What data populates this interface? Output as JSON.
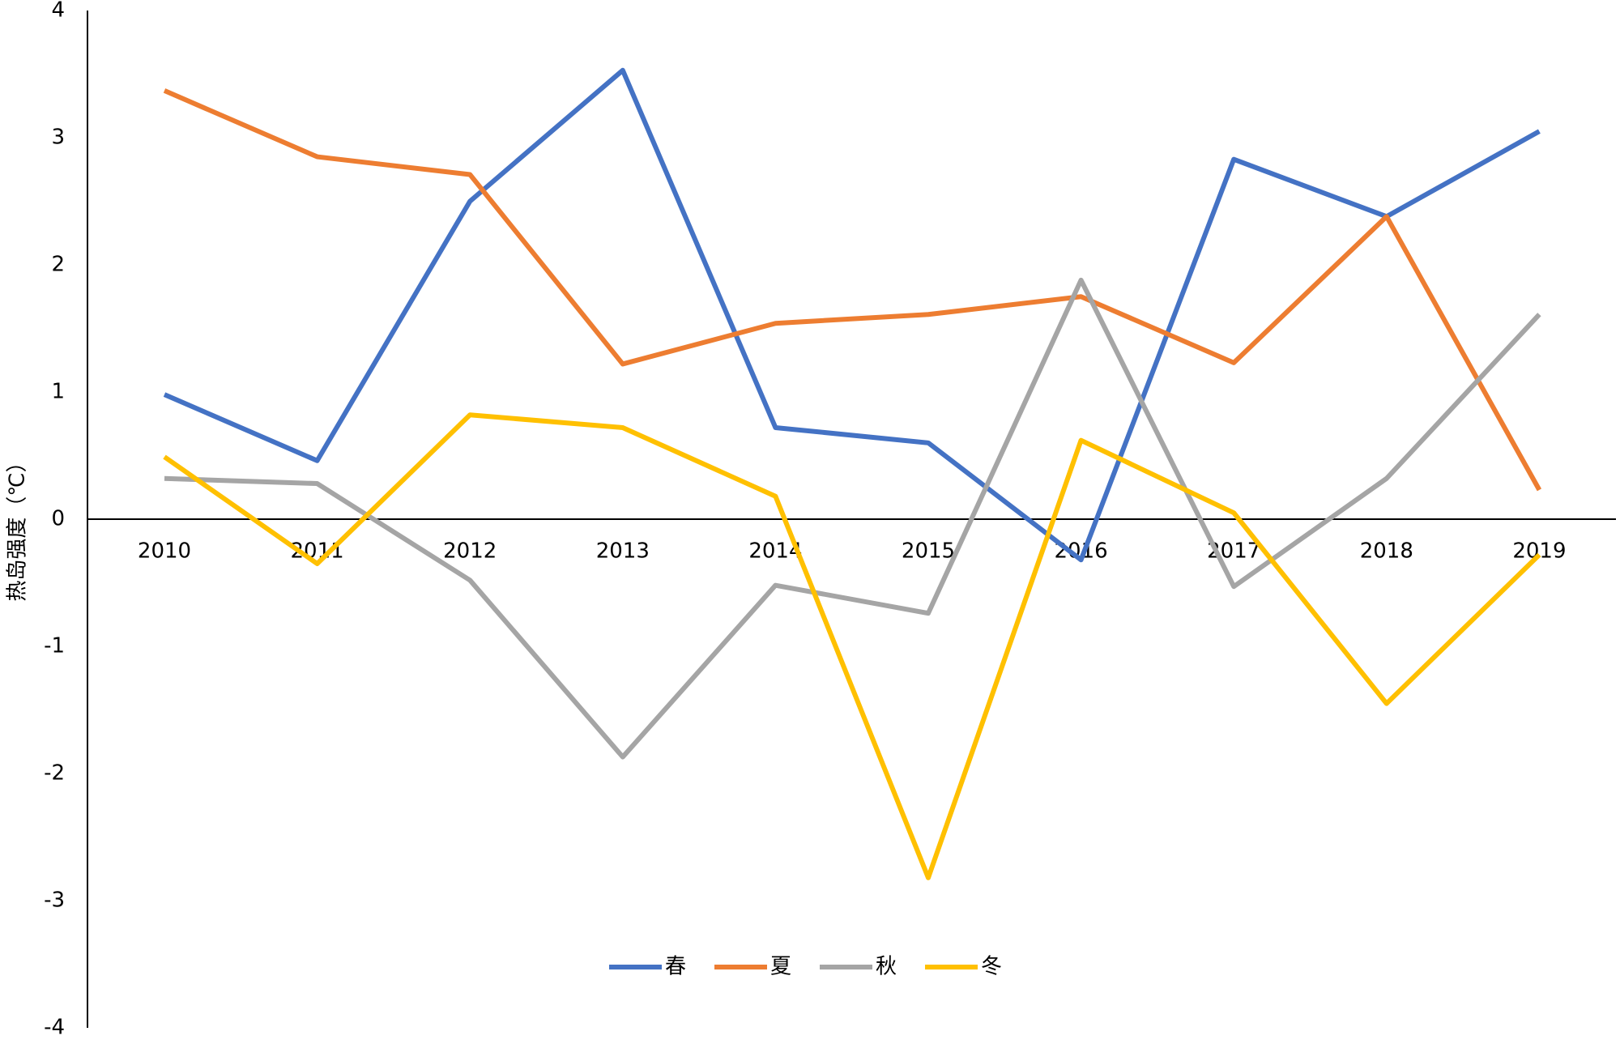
{
  "chart_data": {
    "type": "line",
    "y_label": "热岛强度（℃）",
    "categories": [
      "2010",
      "2011",
      "2012",
      "2013",
      "2014",
      "2015",
      "2016",
      "2017",
      "2018",
      "2019"
    ],
    "series": [
      {
        "name": "春",
        "color": "#4472c4",
        "values": [
          0.98,
          0.46,
          2.5,
          3.53,
          0.72,
          0.6,
          -0.32,
          2.83,
          2.38,
          3.05
        ]
      },
      {
        "name": "夏",
        "color": "#ed7d31",
        "values": [
          3.37,
          2.85,
          2.71,
          1.22,
          1.54,
          1.61,
          1.75,
          1.23,
          2.38,
          0.23
        ]
      },
      {
        "name": "秋",
        "color": "#a5a5a5",
        "values": [
          0.32,
          0.28,
          -0.48,
          -1.87,
          -0.52,
          -0.74,
          1.88,
          -0.53,
          0.32,
          1.61
        ]
      },
      {
        "name": "冬",
        "color": "#ffc000",
        "values": [
          0.49,
          -0.35,
          0.82,
          0.72,
          0.18,
          -2.82,
          0.62,
          0.05,
          -1.45,
          -0.28
        ]
      }
    ],
    "ylim": [
      -4,
      4
    ],
    "yticks": [
      -4,
      -3,
      -2,
      -1,
      0,
      1,
      2,
      3,
      4
    ],
    "legend": "bottom"
  }
}
